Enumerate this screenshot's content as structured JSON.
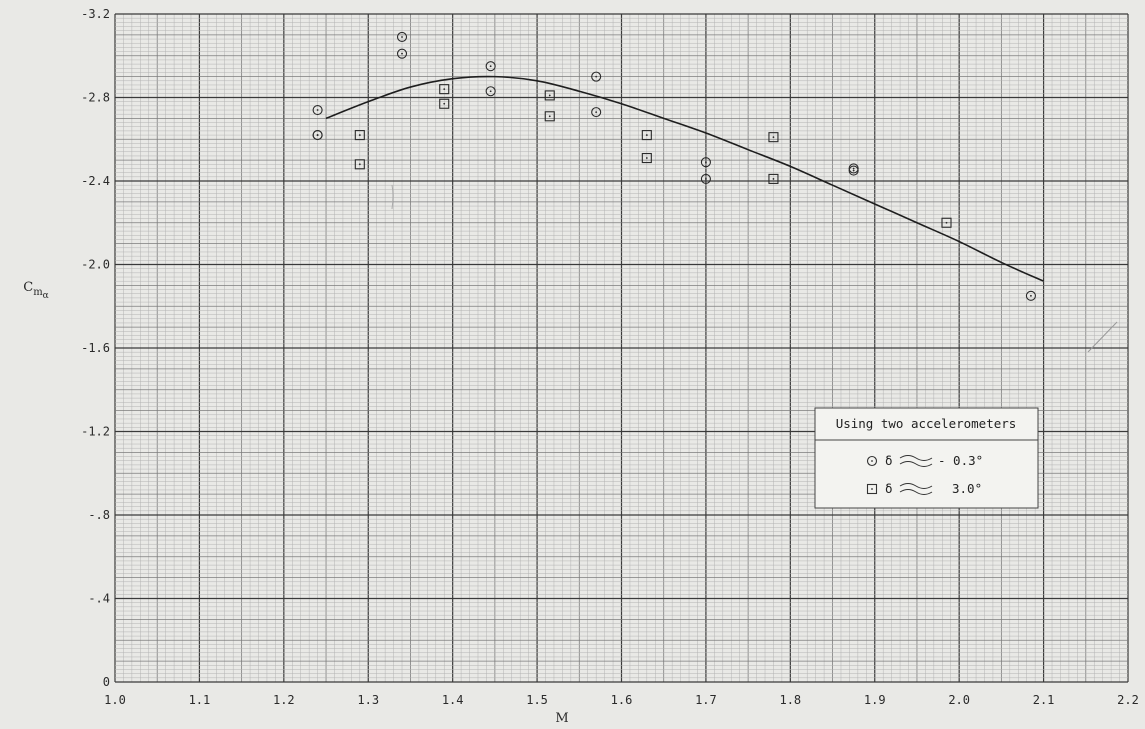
{
  "chart_data": {
    "type": "scatter",
    "title": "",
    "xlabel": "M",
    "ylabel": "Cmα",
    "xlim": [
      1.0,
      2.2
    ],
    "ylim": [
      0.0,
      -3.2
    ],
    "y_axis_inverted": true,
    "grid": true,
    "legend_position": "right-middle",
    "x_tick_labels": [
      "1.0",
      "1.1",
      "1.2",
      "1.3",
      "1.4",
      "1.5",
      "1.6",
      "1.7",
      "1.8",
      "1.9",
      "2.0",
      "2.1",
      "2.2"
    ],
    "y_tick_labels": [
      "0",
      "-.4",
      "-.8",
      "-1.2",
      "-1.6",
      "-2.0",
      "-2.4",
      "-2.8",
      "-3.2"
    ],
    "legend": {
      "title": "Using two accelerometers",
      "entries": [
        {
          "marker": "circle-dot",
          "symbol": "δ",
          "value": "- 0.3°"
        },
        {
          "marker": "square-dot",
          "symbol": "δ",
          "value": "3.0°"
        }
      ]
    },
    "series": [
      {
        "marker": "circle-dot",
        "x": [
          1.24,
          1.24,
          1.24,
          1.34,
          1.34,
          1.445,
          1.445,
          1.57,
          1.57,
          1.7,
          1.7,
          1.875,
          1.875,
          2.085
        ],
        "y": [
          -2.74,
          -2.62,
          -2.62,
          -3.09,
          -3.01,
          -2.95,
          -2.83,
          -2.9,
          -2.73,
          -2.49,
          -2.41,
          -2.46,
          -2.45,
          -1.85
        ]
      },
      {
        "marker": "square-dot",
        "x": [
          1.29,
          1.29,
          1.39,
          1.39,
          1.515,
          1.515,
          1.63,
          1.63,
          1.78,
          1.78,
          1.985
        ],
        "y": [
          -2.62,
          -2.48,
          -2.84,
          -2.77,
          -2.81,
          -2.71,
          -2.62,
          -2.51,
          -2.61,
          -2.41,
          -2.2
        ]
      },
      {
        "type": "line",
        "x": [
          1.25,
          1.3,
          1.35,
          1.4,
          1.45,
          1.5,
          1.55,
          1.6,
          1.65,
          1.7,
          1.75,
          1.8,
          1.85,
          1.9,
          1.95,
          2.0,
          2.05,
          2.1
        ],
        "y": [
          -2.7,
          -2.78,
          -2.85,
          -2.89,
          -2.9,
          -2.88,
          -2.83,
          -2.77,
          -2.7,
          -2.63,
          -2.55,
          -2.47,
          -2.38,
          -2.29,
          -2.2,
          -2.11,
          -2.01,
          -1.92
        ]
      }
    ]
  }
}
